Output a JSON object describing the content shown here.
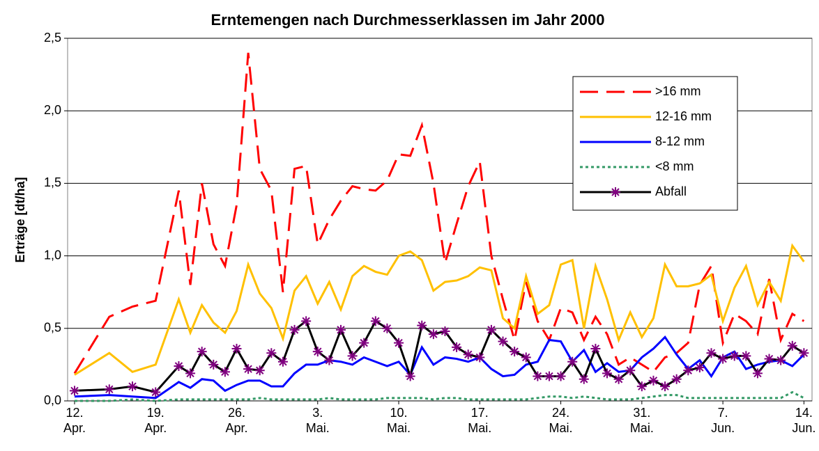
{
  "chart_data": {
    "type": "line",
    "title": "Erntemengen nach Durchmesserklassen im Jahr 2000",
    "y_label": "Erträge [dt/ha]",
    "x": [
      0,
      3,
      5,
      7,
      9,
      10,
      11,
      12,
      13,
      14,
      15,
      16,
      17,
      18,
      19,
      20,
      21,
      22,
      23,
      24,
      25,
      26,
      27,
      28,
      29,
      30,
      31,
      32,
      33,
      34,
      35,
      36,
      37,
      38,
      39,
      40,
      41,
      42,
      43,
      44,
      45,
      46,
      47,
      48,
      49,
      50,
      51,
      52,
      53,
      54,
      55,
      56,
      57,
      58,
      59,
      60,
      61,
      62,
      63
    ],
    "xlim": [
      -0.6,
      63.7
    ],
    "xticks": [
      {
        "value": 0,
        "label": "12.\nApr."
      },
      {
        "value": 7,
        "label": "19.\nApr."
      },
      {
        "value": 14,
        "label": "26.\nApr."
      },
      {
        "value": 21,
        "label": "3.\nMai."
      },
      {
        "value": 28,
        "label": "10.\nMai."
      },
      {
        "value": 35,
        "label": "17.\nMai."
      },
      {
        "value": 42,
        "label": "24.\nMai."
      },
      {
        "value": 49,
        "label": "31.\nMai."
      },
      {
        "value": 56,
        "label": "7.\nJun."
      },
      {
        "value": 63,
        "label": "14.\nJun."
      }
    ],
    "ylim": [
      0,
      2.5
    ],
    "yticks": [
      {
        "value": 0,
        "label": "0,0"
      },
      {
        "value": 0.5,
        "label": "0,5"
      },
      {
        "value": 1,
        "label": "1,0"
      },
      {
        "value": 1.5,
        "label": "1,5"
      },
      {
        "value": 2,
        "label": "2,0"
      },
      {
        "value": 2.5,
        "label": "2,5"
      }
    ],
    "grid": true,
    "legend": "upper right",
    "series": [
      {
        "name": ">16 mm",
        "color": "#ff0000",
        "line_style": "dashed",
        "values": [
          0.19,
          0.58,
          0.65,
          0.69,
          1.45,
          0.8,
          1.5,
          1.08,
          0.93,
          1.35,
          2.4,
          1.6,
          1.45,
          0.75,
          1.6,
          1.62,
          1.08,
          1.25,
          1.38,
          1.48,
          1.46,
          1.45,
          1.52,
          1.7,
          1.69,
          1.9,
          1.5,
          0.95,
          1.22,
          1.48,
          1.65,
          1.0,
          0.7,
          0.42,
          0.82,
          0.55,
          0.42,
          0.64,
          0.61,
          0.42,
          0.58,
          0.46,
          0.25,
          0.3,
          0.25,
          0.2,
          0.3,
          0.33,
          0.4,
          0.8,
          0.93,
          0.4,
          0.6,
          0.55,
          0.46,
          0.84,
          0.42,
          0.6,
          0.55
        ]
      },
      {
        "name": "12-16 mm",
        "color": "#ffc000",
        "line_style": "solid",
        "values": [
          0.18,
          0.33,
          0.2,
          0.25,
          0.7,
          0.47,
          0.66,
          0.54,
          0.47,
          0.62,
          0.94,
          0.74,
          0.64,
          0.43,
          0.76,
          0.86,
          0.67,
          0.82,
          0.63,
          0.86,
          0.93,
          0.89,
          0.87,
          1.0,
          1.03,
          0.97,
          0.76,
          0.82,
          0.83,
          0.86,
          0.92,
          0.9,
          0.57,
          0.5,
          0.86,
          0.6,
          0.66,
          0.94,
          0.97,
          0.5,
          0.93,
          0.7,
          0.42,
          0.61,
          0.44,
          0.57,
          0.94,
          0.79,
          0.79,
          0.81,
          0.87,
          0.55,
          0.78,
          0.93,
          0.66,
          0.82,
          0.69,
          1.07,
          0.96
        ]
      },
      {
        "name": "8-12 mm",
        "color": "#0000ff",
        "line_style": "solid",
        "values": [
          0.03,
          0.04,
          0.03,
          0.02,
          0.13,
          0.09,
          0.15,
          0.14,
          0.07,
          0.11,
          0.14,
          0.14,
          0.1,
          0.1,
          0.19,
          0.25,
          0.25,
          0.28,
          0.27,
          0.25,
          0.3,
          0.27,
          0.24,
          0.27,
          0.18,
          0.37,
          0.25,
          0.3,
          0.29,
          0.27,
          0.3,
          0.22,
          0.17,
          0.18,
          0.25,
          0.27,
          0.42,
          0.41,
          0.27,
          0.35,
          0.2,
          0.26,
          0.2,
          0.21,
          0.3,
          0.36,
          0.44,
          0.32,
          0.22,
          0.28,
          0.17,
          0.3,
          0.34,
          0.22,
          0.25,
          0.27,
          0.28,
          0.24,
          0.32
        ]
      },
      {
        "name": "<8 mm",
        "color": "#339966",
        "line_style": "dotted",
        "values": [
          0.0,
          0.0,
          0.01,
          0.0,
          0.01,
          0.01,
          0.01,
          0.01,
          0.01,
          0.01,
          0.01,
          0.02,
          0.01,
          0.01,
          0.01,
          0.01,
          0.01,
          0.02,
          0.01,
          0.01,
          0.01,
          0.01,
          0.02,
          0.02,
          0.02,
          0.02,
          0.01,
          0.02,
          0.02,
          0.01,
          0.01,
          0.01,
          0.01,
          0.01,
          0.01,
          0.02,
          0.03,
          0.03,
          0.02,
          0.03,
          0.02,
          0.01,
          0.01,
          0.01,
          0.02,
          0.03,
          0.04,
          0.04,
          0.02,
          0.02,
          0.02,
          0.02,
          0.02,
          0.02,
          0.02,
          0.02,
          0.02,
          0.06,
          0.02
        ]
      },
      {
        "name": "Abfall",
        "color": "#000000",
        "marker_color": "#800080",
        "line_style": "solid",
        "values": [
          0.07,
          0.08,
          0.1,
          0.06,
          0.24,
          0.19,
          0.34,
          0.25,
          0.2,
          0.36,
          0.22,
          0.21,
          0.33,
          0.27,
          0.49,
          0.55,
          0.34,
          0.28,
          0.49,
          0.31,
          0.4,
          0.55,
          0.5,
          0.4,
          0.17,
          0.52,
          0.46,
          0.48,
          0.37,
          0.32,
          0.3,
          0.49,
          0.41,
          0.34,
          0.3,
          0.17,
          0.17,
          0.17,
          0.27,
          0.15,
          0.36,
          0.19,
          0.15,
          0.21,
          0.1,
          0.14,
          0.1,
          0.15,
          0.21,
          0.23,
          0.33,
          0.29,
          0.31,
          0.31,
          0.19,
          0.29,
          0.28,
          0.38,
          0.33
        ]
      }
    ]
  }
}
